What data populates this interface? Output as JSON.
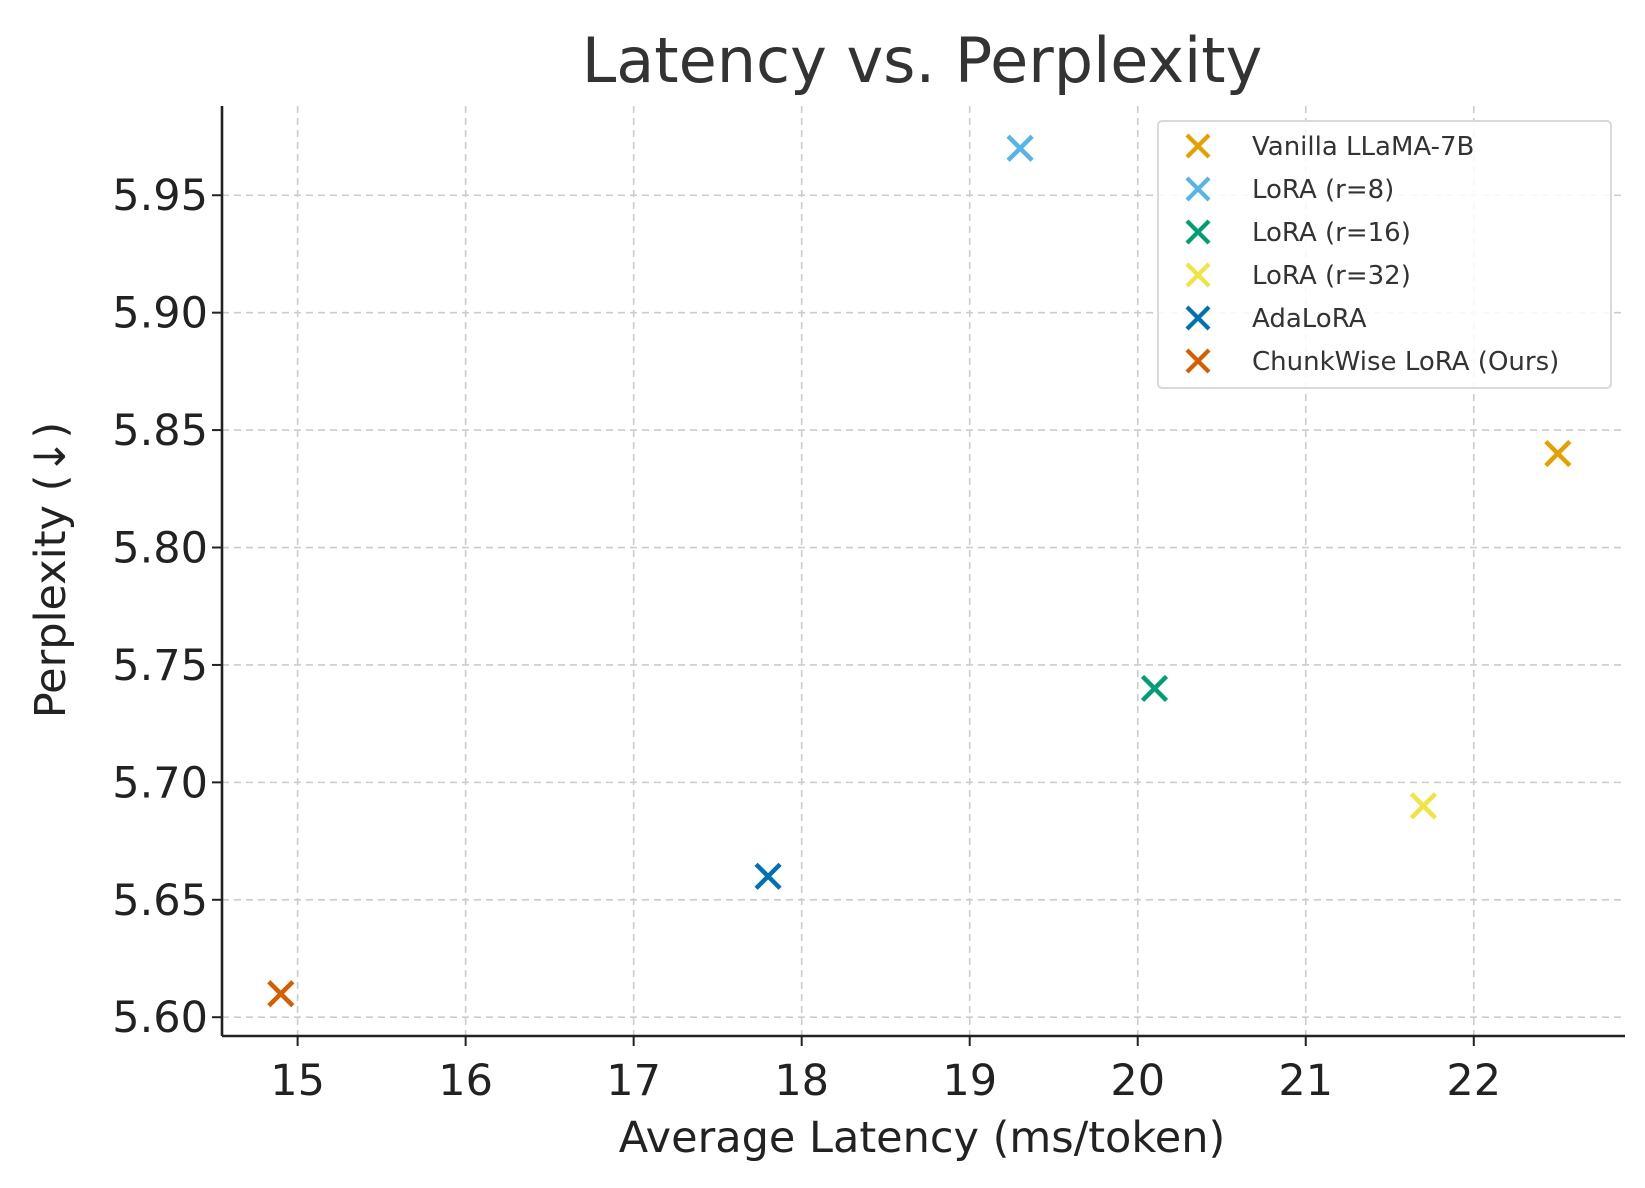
{
  "chart_data": {
    "type": "scatter",
    "title": "Latency vs. Perplexity",
    "xlabel": "Average Latency (ms/token)",
    "ylabel": "Perplexity (↓)",
    "xlim": [
      14.55,
      22.9
    ],
    "ylim": [
      5.592,
      5.988
    ],
    "xticks": [
      15,
      16,
      17,
      18,
      19,
      20,
      21,
      22
    ],
    "yticks": [
      5.6,
      5.65,
      5.7,
      5.75,
      5.8,
      5.85,
      5.9,
      5.95
    ],
    "xtick_labels": [
      "15",
      "16",
      "17",
      "18",
      "19",
      "20",
      "21",
      "22"
    ],
    "ytick_labels": [
      "5.60",
      "5.65",
      "5.70",
      "5.75",
      "5.80",
      "5.85",
      "5.90",
      "5.95"
    ],
    "grid": true,
    "legend_position": "top-right",
    "marker": "x",
    "series": [
      {
        "name": "Vanilla LLaMA-7B",
        "color": "#E69F00",
        "x": 22.5,
        "y": 5.84
      },
      {
        "name": "LoRA (r=8)",
        "color": "#56B4E9",
        "x": 19.3,
        "y": 5.97
      },
      {
        "name": "LoRA (r=16)",
        "color": "#009E73",
        "x": 20.1,
        "y": 5.74
      },
      {
        "name": "LoRA (r=32)",
        "color": "#F0E442",
        "x": 21.7,
        "y": 5.69
      },
      {
        "name": "AdaLoRA",
        "color": "#0072B2",
        "x": 17.8,
        "y": 5.66
      },
      {
        "name": "ChunkWise LoRA (Ours)",
        "color": "#D55E00",
        "x": 14.9,
        "y": 5.61
      }
    ]
  }
}
